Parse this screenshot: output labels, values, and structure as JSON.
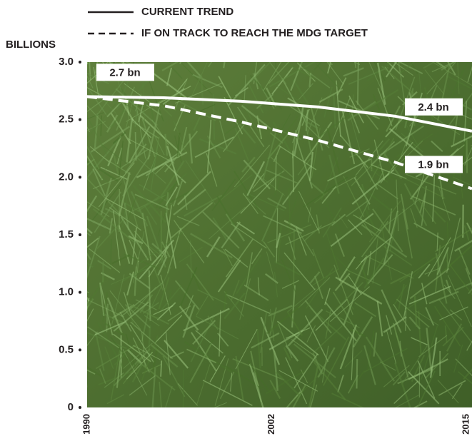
{
  "chart_data": {
    "type": "line",
    "y_label": "BILLIONS",
    "x": [
      1990,
      1995,
      2000,
      2005,
      2010,
      2015
    ],
    "series": [
      {
        "name": "CURRENT TREND",
        "color": "#ffffff",
        "dash": false,
        "values": [
          2.7,
          2.69,
          2.66,
          2.61,
          2.53,
          2.4
        ],
        "value_labels": [
          "2.7 bn",
          null,
          null,
          null,
          null,
          "2.4 bn"
        ]
      },
      {
        "name": "IF ON TRACK TO REACH THE MDG TARGET",
        "color": "#ffffff",
        "dash": true,
        "values": [
          2.7,
          2.62,
          2.48,
          2.32,
          2.13,
          1.9
        ],
        "value_labels": [
          null,
          null,
          null,
          null,
          null,
          "1.9 bn"
        ]
      }
    ],
    "xlim": [
      1990,
      2015
    ],
    "xticks": [
      1990,
      2002,
      2015
    ],
    "ylim": [
      0,
      3
    ],
    "yticks": [
      0,
      0.5,
      {
        "value": 1,
        "label": "1.0"
      },
      1.5,
      {
        "value": 2,
        "label": "2.0"
      },
      2.5,
      {
        "value": 3,
        "label": "3.0"
      }
    ]
  }
}
